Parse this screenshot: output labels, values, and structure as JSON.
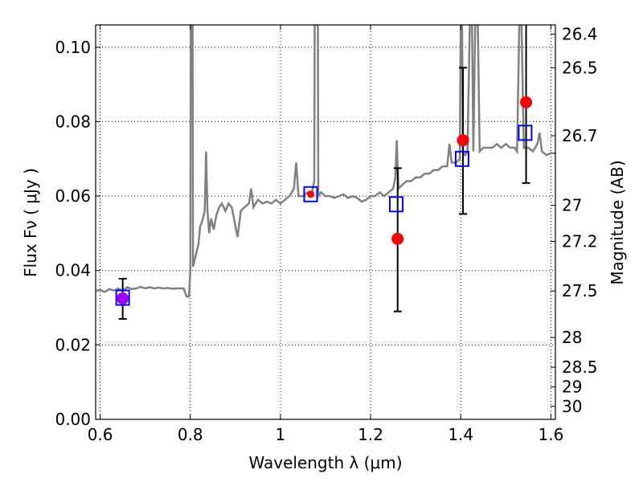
{
  "chart_data": {
    "type": "scatter",
    "xlabel": "Wavelength  λ (μm)",
    "ylabel": "Flux  Fν  ( μJy )",
    "y2label": "Magnitude (AB)",
    "xlim": [
      0.59,
      1.61
    ],
    "ylim": [
      0.0,
      0.106
    ],
    "grid": true,
    "x_ticks": [
      0.6,
      0.8,
      1.0,
      1.2,
      1.4,
      1.6
    ],
    "x_tick_labels": [
      "0.6",
      "0.8",
      "1",
      "1.2",
      "1.4",
      "1.6"
    ],
    "y_ticks": [
      0.0,
      0.02,
      0.04,
      0.06,
      0.08,
      0.1
    ],
    "y_tick_labels": [
      "0.00",
      "0.02",
      "0.04",
      "0.06",
      "0.08",
      "0.10"
    ],
    "right_axis_ticks": [
      {
        "flux": 0.1035,
        "label": "26.4"
      },
      {
        "flux": 0.0945,
        "label": "26.5"
      },
      {
        "flux": 0.0762,
        "label": "26.7"
      },
      {
        "flux": 0.0575,
        "label": "27"
      },
      {
        "flux": 0.0478,
        "label": "27.2"
      },
      {
        "flux": 0.0345,
        "label": "27.5"
      },
      {
        "flux": 0.022,
        "label": "28"
      },
      {
        "flux": 0.014,
        "label": "28.5"
      },
      {
        "flux": 0.0087,
        "label": "29"
      },
      {
        "flux": 0.0035,
        "label": "30"
      }
    ],
    "series": [
      {
        "kind": "model_spectrum",
        "color": "#808080",
        "points": [
          [
            0.59,
            0.0345
          ],
          [
            0.6,
            0.0348
          ],
          [
            0.61,
            0.0342
          ],
          [
            0.62,
            0.035
          ],
          [
            0.63,
            0.0346
          ],
          [
            0.64,
            0.0352
          ],
          [
            0.65,
            0.0345
          ],
          [
            0.66,
            0.0355
          ],
          [
            0.67,
            0.035
          ],
          [
            0.68,
            0.0352
          ],
          [
            0.69,
            0.0356
          ],
          [
            0.7,
            0.0352
          ],
          [
            0.71,
            0.0355
          ],
          [
            0.72,
            0.0352
          ],
          [
            0.73,
            0.0354
          ],
          [
            0.74,
            0.0352
          ],
          [
            0.75,
            0.0353
          ],
          [
            0.76,
            0.0351
          ],
          [
            0.77,
            0.0352
          ],
          [
            0.785,
            0.0352
          ],
          [
            0.792,
            0.033
          ],
          [
            0.797,
            0.033
          ],
          [
            0.8,
            0.04
          ],
          [
            0.801,
            0.106
          ],
          [
            0.805,
            0.106
          ],
          [
            0.806,
            0.041
          ],
          [
            0.812,
            0.044
          ],
          [
            0.818,
            0.047
          ],
          [
            0.822,
            0.052
          ],
          [
            0.826,
            0.053
          ],
          [
            0.832,
            0.056
          ],
          [
            0.835,
            0.072
          ],
          [
            0.838,
            0.056
          ],
          [
            0.842,
            0.05
          ],
          [
            0.846,
            0.054
          ],
          [
            0.852,
            0.051
          ],
          [
            0.858,
            0.055
          ],
          [
            0.864,
            0.057
          ],
          [
            0.87,
            0.058
          ],
          [
            0.878,
            0.056
          ],
          [
            0.885,
            0.058
          ],
          [
            0.892,
            0.057
          ],
          [
            0.9,
            0.052
          ],
          [
            0.905,
            0.049
          ],
          [
            0.912,
            0.056
          ],
          [
            0.92,
            0.057
          ],
          [
            0.93,
            0.058
          ],
          [
            0.935,
            0.062
          ],
          [
            0.94,
            0.057
          ],
          [
            0.95,
            0.059
          ],
          [
            0.96,
            0.058
          ],
          [
            0.97,
            0.0585
          ],
          [
            0.98,
            0.058
          ],
          [
            0.99,
            0.059
          ],
          [
            1.0,
            0.058
          ],
          [
            1.01,
            0.059
          ],
          [
            1.02,
            0.06
          ],
          [
            1.03,
            0.062
          ],
          [
            1.035,
            0.069
          ],
          [
            1.04,
            0.06
          ],
          [
            1.05,
            0.06
          ],
          [
            1.06,
            0.061
          ],
          [
            1.07,
            0.061
          ],
          [
            1.075,
            0.064
          ],
          [
            1.076,
            0.106
          ],
          [
            1.083,
            0.106
          ],
          [
            1.084,
            0.06
          ],
          [
            1.09,
            0.061
          ],
          [
            1.1,
            0.06
          ],
          [
            1.11,
            0.06
          ],
          [
            1.12,
            0.0595
          ],
          [
            1.13,
            0.06
          ],
          [
            1.14,
            0.0605
          ],
          [
            1.15,
            0.0595
          ],
          [
            1.16,
            0.06
          ],
          [
            1.17,
            0.0595
          ],
          [
            1.18,
            0.0585
          ],
          [
            1.19,
            0.059
          ],
          [
            1.2,
            0.06
          ],
          [
            1.21,
            0.06
          ],
          [
            1.22,
            0.061
          ],
          [
            1.23,
            0.06
          ],
          [
            1.24,
            0.061
          ],
          [
            1.25,
            0.062
          ],
          [
            1.255,
            0.065
          ],
          [
            1.258,
            0.075
          ],
          [
            1.262,
            0.062
          ],
          [
            1.27,
            0.063
          ],
          [
            1.28,
            0.064
          ],
          [
            1.29,
            0.064
          ],
          [
            1.3,
            0.065
          ],
          [
            1.31,
            0.065
          ],
          [
            1.32,
            0.066
          ],
          [
            1.33,
            0.066
          ],
          [
            1.34,
            0.067
          ],
          [
            1.35,
            0.067
          ],
          [
            1.36,
            0.068
          ],
          [
            1.37,
            0.068
          ],
          [
            1.375,
            0.074
          ],
          [
            1.38,
            0.069
          ],
          [
            1.39,
            0.069
          ],
          [
            1.398,
            0.07
          ],
          [
            1.4,
            0.106
          ],
          [
            1.403,
            0.106
          ],
          [
            1.405,
            0.072
          ],
          [
            1.41,
            0.071
          ],
          [
            1.415,
            0.072
          ],
          [
            1.42,
            0.106
          ],
          [
            1.425,
            0.106
          ],
          [
            1.428,
            0.072
          ],
          [
            1.432,
            0.106
          ],
          [
            1.438,
            0.106
          ],
          [
            1.442,
            0.072
          ],
          [
            1.45,
            0.073
          ],
          [
            1.46,
            0.073
          ],
          [
            1.47,
            0.073
          ],
          [
            1.48,
            0.074
          ],
          [
            1.49,
            0.073
          ],
          [
            1.5,
            0.074
          ],
          [
            1.51,
            0.073
          ],
          [
            1.52,
            0.073
          ],
          [
            1.525,
            0.072
          ],
          [
            1.53,
            0.106
          ],
          [
            1.535,
            0.106
          ],
          [
            1.54,
            0.073
          ],
          [
            1.55,
            0.073
          ],
          [
            1.56,
            0.072
          ],
          [
            1.57,
            0.074
          ],
          [
            1.575,
            0.077
          ],
          [
            1.58,
            0.072
          ],
          [
            1.59,
            0.071
          ],
          [
            1.6,
            0.0715
          ],
          [
            1.61,
            0.0715
          ]
        ]
      },
      {
        "kind": "observed_with_errors",
        "color": "#ff0000",
        "points": [
          {
            "x": 0.65,
            "y": 0.0325,
            "yerr_low": 0.027,
            "yerr_high": 0.0378,
            "color": "#9b00ff"
          },
          {
            "x": 1.067,
            "y": 0.0605,
            "yerr_low": null,
            "yerr_high": null,
            "color": "#ff0000"
          },
          {
            "x": 1.26,
            "y": 0.0485,
            "yerr_low": 0.029,
            "yerr_high": 0.0675,
            "color": "#ff0000"
          },
          {
            "x": 1.405,
            "y": 0.075,
            "yerr_low": 0.0552,
            "yerr_high": 0.0945,
            "color": "#ff0000"
          },
          {
            "x": 1.545,
            "y": 0.0852,
            "yerr_low": 0.0635,
            "yerr_high": 0.106,
            "color": "#ff0000"
          }
        ]
      },
      {
        "kind": "model_photometry_squares",
        "color": "#0000ff",
        "points": [
          {
            "x": 0.65,
            "y": 0.0327
          },
          {
            "x": 1.067,
            "y": 0.0605
          },
          {
            "x": 1.257,
            "y": 0.0578
          },
          {
            "x": 1.403,
            "y": 0.07
          },
          {
            "x": 1.543,
            "y": 0.077
          }
        ]
      }
    ]
  }
}
